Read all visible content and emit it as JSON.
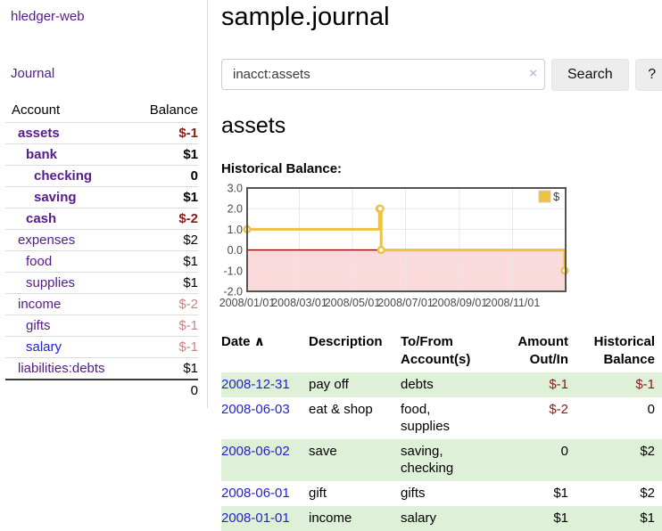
{
  "app": {
    "title": "hledger-web",
    "nav_journal": "Journal"
  },
  "sidebar": {
    "table_headers": {
      "account": "Account",
      "balance": "Balance"
    },
    "accounts": [
      {
        "label": "assets",
        "depth": 1,
        "bold": true,
        "balance": "$-1",
        "tone": "neg"
      },
      {
        "label": "bank",
        "depth": 2,
        "bold": true,
        "balance": "$1",
        "tone": null
      },
      {
        "label": "checking",
        "depth": 3,
        "bold": true,
        "balance": "0",
        "tone": null
      },
      {
        "label": "saving",
        "depth": 3,
        "bold": true,
        "balance": "$1",
        "tone": null
      },
      {
        "label": "cash",
        "depth": 2,
        "bold": true,
        "balance": "$-2",
        "tone": "neg"
      },
      {
        "label": "expenses",
        "depth": 1,
        "bold": false,
        "balance": "$2",
        "tone": null
      },
      {
        "label": "food",
        "depth": 2,
        "bold": false,
        "balance": "$1",
        "tone": null
      },
      {
        "label": "supplies",
        "depth": 2,
        "bold": false,
        "balance": "$1",
        "tone": null
      },
      {
        "label": "income",
        "depth": 1,
        "bold": false,
        "balance": "$-2",
        "tone": "negsoft"
      },
      {
        "label": "gifts",
        "depth": 2,
        "bold": false,
        "balance": "$-1",
        "tone": "negsoft"
      },
      {
        "label": "salary",
        "depth": 2,
        "bold": false,
        "balance": "$-1",
        "tone": "negsoft",
        "link": "blue"
      },
      {
        "label": "liabilities:debts",
        "depth": 1,
        "bold": false,
        "balance": "$1",
        "tone": null
      }
    ],
    "total": "0"
  },
  "main": {
    "title": "sample.journal",
    "search": {
      "value": "inacct:assets",
      "clear_icon": "×",
      "button": "Search",
      "help_button": "?"
    },
    "account_heading": "assets",
    "chart_heading": "Historical Balance:"
  },
  "chart_data": {
    "type": "line",
    "title": "Historical Balance:",
    "step": true,
    "series": [
      {
        "name": "$",
        "color": "#edc240",
        "points": [
          [
            "2008-01-01",
            1
          ],
          [
            "2008-06-01",
            2
          ],
          [
            "2008-06-02",
            2
          ],
          [
            "2008-06-03",
            0
          ],
          [
            "2008-12-31",
            -1
          ]
        ]
      }
    ],
    "xlim": [
      "2008-01-01",
      "2009-01-01"
    ],
    "ylim": [
      -2,
      3
    ],
    "x_ticks": [
      {
        "date": "2008-01-01",
        "label": "2008/01/01"
      },
      {
        "date": "2008-03-01",
        "label": "2008/03/01"
      },
      {
        "date": "2008-05-01",
        "label": "2008/05/01"
      },
      {
        "date": "2008-07-01",
        "label": "2008/07/01"
      },
      {
        "date": "2008-09-01",
        "label": "2008/09/01"
      },
      {
        "date": "2008-11-01",
        "label": "2008/11/01"
      }
    ],
    "y_ticks": [
      3.0,
      2.0,
      1.0,
      0.0,
      -1.0,
      -2.0
    ],
    "grid": true,
    "legend_position": "top-right",
    "colors": {
      "line": "#edc240",
      "negative_fill": "#fadada",
      "zero_line": "#8b0000",
      "border": "#545454",
      "gridline": "#e7e7e7",
      "tick_text": "#4a4a4a"
    }
  },
  "transactions": {
    "headers": [
      "Date",
      "Description",
      "To/From Account(s)",
      "Amount Out/In",
      "Historical Balance"
    ],
    "sort_icon": "∧",
    "rows": [
      {
        "date": "2008-12-31",
        "description": "pay off",
        "accounts": "debts",
        "amount": "$-1",
        "amount_tone": "neg",
        "balance": "$-1",
        "balance_tone": "neg",
        "shaded": true
      },
      {
        "date": "2008-06-03",
        "description": "eat & shop",
        "accounts": "food, supplies",
        "amount": "$-2",
        "amount_tone": "neg",
        "balance": "0",
        "balance_tone": null,
        "shaded": false
      },
      {
        "date": "2008-06-02",
        "description": "save",
        "accounts": "saving, checking",
        "amount": "0",
        "amount_tone": null,
        "balance": "$2",
        "balance_tone": null,
        "shaded": true
      },
      {
        "date": "2008-06-01",
        "description": "gift",
        "accounts": "gifts",
        "amount": "$1",
        "amount_tone": null,
        "balance": "$2",
        "balance_tone": null,
        "shaded": false
      },
      {
        "date": "2008-01-01",
        "description": "income",
        "accounts": "salary",
        "amount": "$1",
        "amount_tone": null,
        "balance": "$1",
        "balance_tone": null,
        "shaded": true
      }
    ]
  }
}
